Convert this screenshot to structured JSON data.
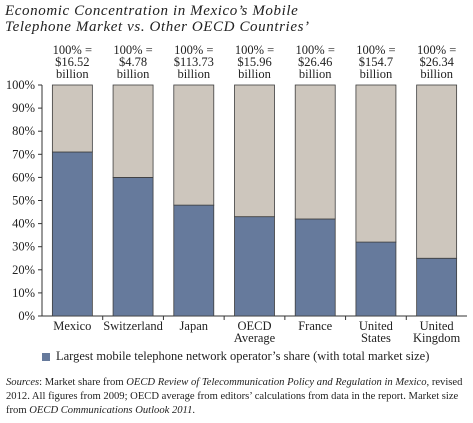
{
  "title_lines": [
    "Economic Concentration in Mexico’s Mobile",
    "Telephone Market vs. Other OECD Countries’"
  ],
  "chart_data": {
    "type": "bar",
    "stacked": true,
    "categories": [
      [
        "Mexico"
      ],
      [
        "Switzerland"
      ],
      [
        "Japan"
      ],
      [
        "OECD",
        "Average"
      ],
      [
        "France"
      ],
      [
        "United",
        "States"
      ],
      [
        "United",
        "Kingdom"
      ]
    ],
    "totals_labels": [
      [
        "100% =",
        "$16.52",
        "billion"
      ],
      [
        "100% =",
        "$4.78",
        "billion"
      ],
      [
        "100% =",
        "$113.73",
        "billion"
      ],
      [
        "100% =",
        "$15.96",
        "billion"
      ],
      [
        "100% =",
        "$26.46",
        "billion"
      ],
      [
        "100% =",
        "$154.7",
        "billion"
      ],
      [
        "100% =",
        "$26.34",
        "billion"
      ]
    ],
    "series": [
      {
        "name": "Largest mobile telephone network operator’s share (with total market size)",
        "color": "#667a9c",
        "values": [
          71,
          60,
          48,
          43,
          42,
          32,
          25
        ]
      },
      {
        "color": "#cdc6bd",
        "values": [
          29,
          40,
          52,
          57,
          58,
          68,
          75
        ]
      }
    ],
    "y_ticks": [
      "0%",
      "10%",
      "20%",
      "30%",
      "40%",
      "50%",
      "60%",
      "70%",
      "80%",
      "90%",
      "100%"
    ],
    "ylim": [
      0,
      100
    ],
    "grid": false,
    "legend_position": "bottom"
  },
  "sources": {
    "label": "Sources",
    "t1": ": Market share from ",
    "i1": "OECD Review of Telecommunication Policy and Regulation in Mexico",
    "t2": ", revised 2012. All figures from 2009; OECD average from editors’ calculations from data in the report. Market size from ",
    "i2": "OECD Communications Outlook 2011",
    "t3": "."
  }
}
